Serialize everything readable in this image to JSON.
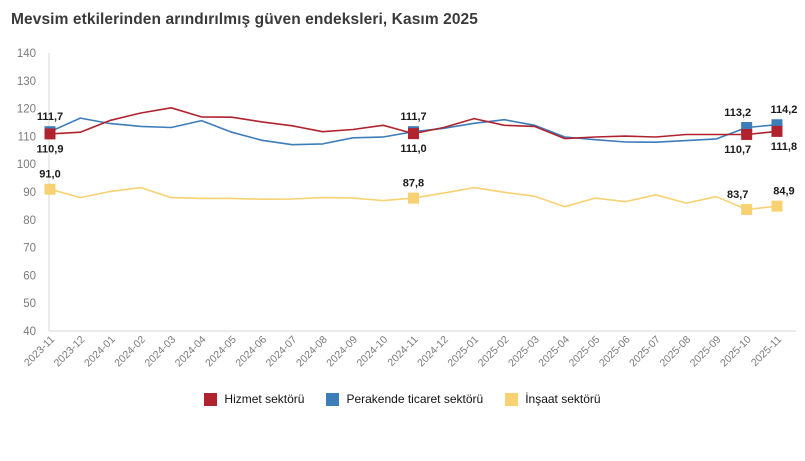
{
  "title": "Mevsim etkilerinden arındırılmış güven endeksleri, Kasım 2025",
  "colors": {
    "hizmet": "#b0232e",
    "perakende": "#3d7dba",
    "insaat": "#f8d172",
    "axis_line": "#d9d9d9",
    "tick_text": "#7b7b7b",
    "point_label_text": "#1a1a1a",
    "title_text": "#3a3a3a"
  },
  "chart_data": {
    "type": "line",
    "title": "Mevsim etkilerinden arındırılmış güven endeksleri, Kasım 2025",
    "xlabel": "",
    "ylabel": "",
    "ylim": [
      40,
      140
    ],
    "ytick_step": 10,
    "grid": false,
    "legend_position": "bottom-center",
    "categories": [
      "2023-11",
      "2023-12",
      "2024-01",
      "2024-02",
      "2024-03",
      "2024-04",
      "2024-05",
      "2024-06",
      "2024-07",
      "2024-08",
      "2024-09",
      "2024-10",
      "2024-11",
      "2024-12",
      "2025-01",
      "2025-02",
      "2025-03",
      "2025-04",
      "2025-05",
      "2025-06",
      "2025-07",
      "2025-08",
      "2025-09",
      "2025-10",
      "2025-11"
    ],
    "series": [
      {
        "name": "Hizmet sektörü",
        "color": "#b0232e",
        "values": [
          110.9,
          111.5,
          115.8,
          118.4,
          120.3,
          117.0,
          116.9,
          115.2,
          113.8,
          111.7,
          112.5,
          114.0,
          111.0,
          113.2,
          116.4,
          114.0,
          113.6,
          109.2,
          109.8,
          110.1,
          109.8,
          110.7,
          110.7,
          110.7,
          111.8
        ],
        "point_labels": [
          {
            "i": 0,
            "text": "110,9",
            "pos": "below",
            "dx": 0
          },
          {
            "i": 12,
            "text": "111,0",
            "pos": "below",
            "dx": 0
          },
          {
            "i": 23,
            "text": "110,7",
            "pos": "below",
            "dx": -9
          },
          {
            "i": 24,
            "text": "111,8",
            "pos": "below",
            "dx": 7
          }
        ]
      },
      {
        "name": "Perakende ticaret sektörü",
        "color": "#3d7dba",
        "values": [
          111.7,
          116.6,
          114.6,
          113.6,
          113.2,
          115.7,
          111.5,
          108.6,
          107.0,
          107.3,
          109.5,
          109.8,
          111.7,
          112.9,
          114.7,
          116.0,
          114.0,
          109.8,
          108.8,
          108.0,
          107.9,
          108.5,
          109.1,
          113.2,
          114.2
        ],
        "point_labels": [
          {
            "i": 0,
            "text": "111,7",
            "pos": "above",
            "dx": 0
          },
          {
            "i": 12,
            "text": "111,7",
            "pos": "above",
            "dx": 0
          },
          {
            "i": 23,
            "text": "113,2",
            "pos": "above",
            "dx": -9
          },
          {
            "i": 24,
            "text": "114,2",
            "pos": "above",
            "dx": 7
          }
        ]
      },
      {
        "name": "İnşaat sektörü",
        "color": "#f8d172",
        "values": [
          91.0,
          88.0,
          90.2,
          91.6,
          88.0,
          87.7,
          87.7,
          87.4,
          87.5,
          88.0,
          87.8,
          86.9,
          87.8,
          89.6,
          91.6,
          89.9,
          88.5,
          84.7,
          87.8,
          86.5,
          89.0,
          86.0,
          88.3,
          83.7,
          84.9
        ],
        "point_labels": [
          {
            "i": 0,
            "text": "91,0",
            "pos": "above",
            "dx": 0
          },
          {
            "i": 12,
            "text": "87,8",
            "pos": "above",
            "dx": 0
          },
          {
            "i": 23,
            "text": "83,7",
            "pos": "above",
            "dx": -9
          },
          {
            "i": 24,
            "text": "84,9",
            "pos": "above",
            "dx": 7
          }
        ]
      }
    ]
  }
}
